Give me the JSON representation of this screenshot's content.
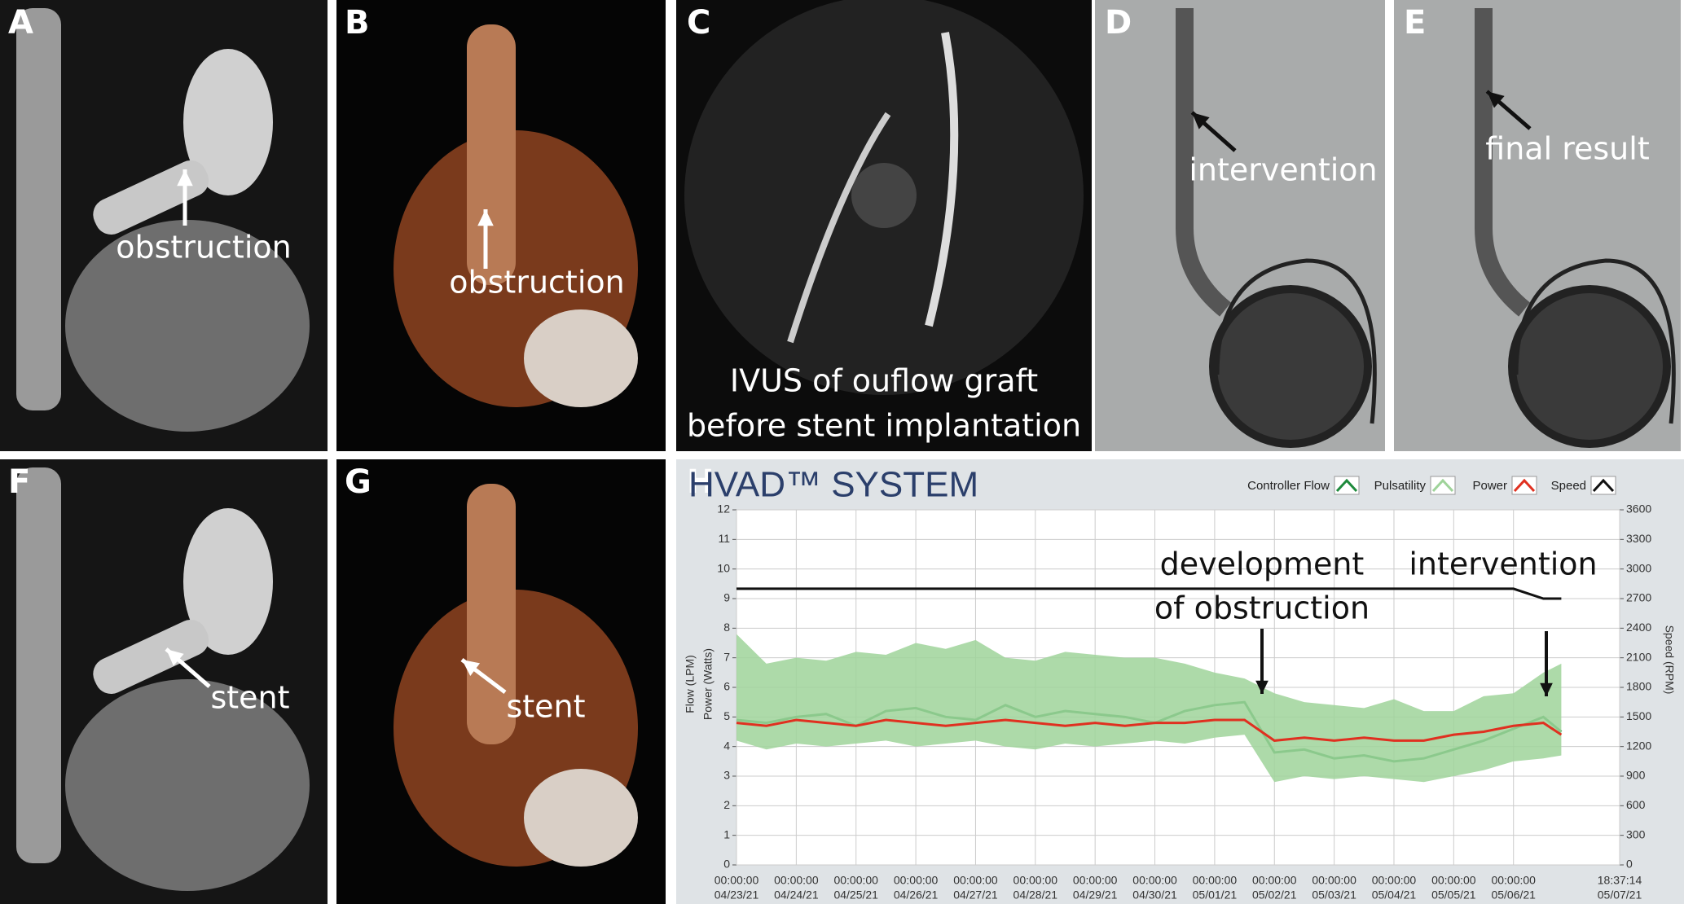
{
  "panels": [
    {
      "label": "A",
      "annotations": [
        "obstruction"
      ]
    },
    {
      "label": "B",
      "annotations": [
        "obstruction"
      ]
    },
    {
      "label": "C",
      "annotations": [
        "IVUS of ouflow graft",
        "before stent implantation"
      ]
    },
    {
      "label": "D",
      "annotations": [
        "intervention"
      ]
    },
    {
      "label": "E",
      "annotations": [
        "final result"
      ]
    },
    {
      "label": "F",
      "annotations": [
        "stent"
      ]
    },
    {
      "label": "G",
      "annotations": [
        "stent"
      ]
    },
    {
      "label": "H",
      "annotations": []
    }
  ],
  "chart_data": {
    "type": "line",
    "title": "HVAD™ SYSTEM",
    "y_axis_labels": [
      "Flow (LPM)",
      "Power (Watts)"
    ],
    "y2_axis_label": "Speed (RPM)",
    "annotations": [
      [
        "development",
        "of obstruction"
      ],
      [
        "intervention"
      ]
    ],
    "x": [
      0,
      0.5,
      1,
      1.5,
      2,
      2.5,
      3,
      3.5,
      4,
      4.5,
      5,
      5.5,
      6,
      6.5,
      7,
      7.5,
      8,
      8.5,
      9,
      9.5,
      10,
      10.5,
      11,
      11.5,
      12,
      12.5,
      13,
      13.5,
      13.8
    ],
    "series": [
      {
        "name": "Controller Flow",
        "color": "#1e8a3c",
        "values": [
          4.9,
          4.8,
          5.0,
          5.1,
          4.7,
          5.2,
          5.3,
          5.0,
          4.9,
          5.4,
          5.0,
          5.2,
          5.1,
          5.0,
          4.8,
          5.2,
          5.4,
          5.5,
          3.8,
          3.9,
          3.6,
          3.7,
          3.5,
          3.6,
          3.9,
          4.2,
          4.6,
          5.0,
          4.5
        ]
      },
      {
        "name": "Pulsatility",
        "color": "#9fd39a",
        "high": [
          7.8,
          6.8,
          7.0,
          6.9,
          7.2,
          7.1,
          7.5,
          7.3,
          7.6,
          7.0,
          6.9,
          7.2,
          7.1,
          7.0,
          7.0,
          6.8,
          6.5,
          6.3,
          5.8,
          5.5,
          5.4,
          5.3,
          5.6,
          5.2,
          5.2,
          5.7,
          5.8,
          6.5,
          6.8
        ],
        "low": [
          4.2,
          3.9,
          4.1,
          4.0,
          4.1,
          4.2,
          4.0,
          4.1,
          4.2,
          4.0,
          3.9,
          4.1,
          4.0,
          4.1,
          4.2,
          4.1,
          4.3,
          4.4,
          2.8,
          3.0,
          2.9,
          3.0,
          2.9,
          2.8,
          3.0,
          3.2,
          3.5,
          3.6,
          3.7
        ]
      },
      {
        "name": "Power",
        "color": "#e03020",
        "values": [
          4.8,
          4.7,
          4.9,
          4.8,
          4.7,
          4.9,
          4.8,
          4.7,
          4.8,
          4.9,
          4.8,
          4.7,
          4.8,
          4.7,
          4.8,
          4.8,
          4.9,
          4.9,
          4.2,
          4.3,
          4.2,
          4.3,
          4.2,
          4.2,
          4.4,
          4.5,
          4.7,
          4.8,
          4.4
        ]
      },
      {
        "name": "Speed",
        "color": "#111111",
        "axis": "y2",
        "values": [
          2800,
          2800,
          2800,
          2800,
          2800,
          2800,
          2800,
          2800,
          2800,
          2800,
          2800,
          2800,
          2800,
          2800,
          2800,
          2800,
          2800,
          2800,
          2800,
          2800,
          2800,
          2800,
          2800,
          2800,
          2800,
          2800,
          2800,
          2700,
          2700
        ]
      }
    ],
    "xlim": [
      0,
      14.776
    ],
    "xticks": [
      {
        "value": 0,
        "label": [
          "00:00:00",
          "04/23/21"
        ]
      },
      {
        "value": 1,
        "label": [
          "00:00:00",
          "04/24/21"
        ]
      },
      {
        "value": 2,
        "label": [
          "00:00:00",
          "04/25/21"
        ]
      },
      {
        "value": 3,
        "label": [
          "00:00:00",
          "04/26/21"
        ]
      },
      {
        "value": 4,
        "label": [
          "00:00:00",
          "04/27/21"
        ]
      },
      {
        "value": 5,
        "label": [
          "00:00:00",
          "04/28/21"
        ]
      },
      {
        "value": 6,
        "label": [
          "00:00:00",
          "04/29/21"
        ]
      },
      {
        "value": 7,
        "label": [
          "00:00:00",
          "04/30/21"
        ]
      },
      {
        "value": 8,
        "label": [
          "00:00:00",
          "05/01/21"
        ]
      },
      {
        "value": 9,
        "label": [
          "00:00:00",
          "05/02/21"
        ]
      },
      {
        "value": 10,
        "label": [
          "00:00:00",
          "05/03/21"
        ]
      },
      {
        "value": 11,
        "label": [
          "00:00:00",
          "05/04/21"
        ]
      },
      {
        "value": 12,
        "label": [
          "00:00:00",
          "05/05/21"
        ]
      },
      {
        "value": 13,
        "label": [
          "00:00:00",
          "05/06/21"
        ]
      },
      {
        "value": 14.776,
        "label": [
          "18:37:14",
          "05/07/21"
        ]
      }
    ],
    "ylim": [
      0,
      12
    ],
    "yticks": [
      0,
      1,
      2,
      3,
      4,
      5,
      6,
      7,
      8,
      9,
      10,
      11,
      12
    ],
    "y2lim": [
      0,
      3600
    ],
    "y2ticks": [
      0,
      300,
      600,
      900,
      1200,
      1500,
      1800,
      2100,
      2400,
      2700,
      3000,
      3300,
      3600
    ],
    "grid": true
  }
}
